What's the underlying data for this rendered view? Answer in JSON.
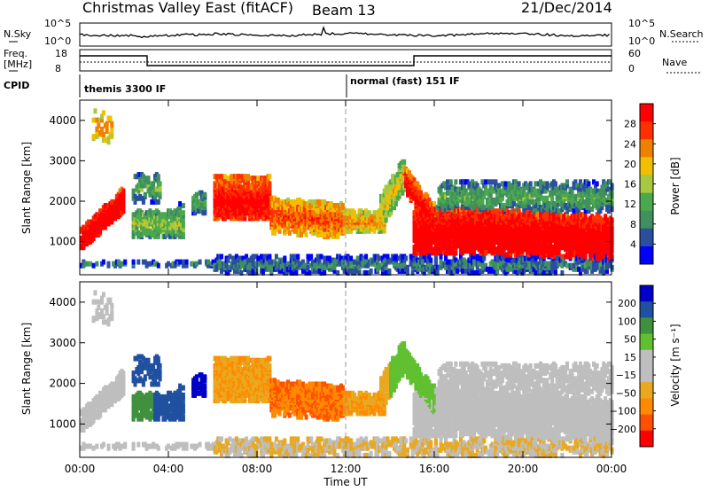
{
  "header": {
    "site": "Christmas Valley East (fitACF)",
    "beam": "Beam 13",
    "date": "21/Dec/2014"
  },
  "aux_panels": {
    "nsky_label": "N.Sky",
    "nsky_ticks": [
      "10^5",
      "10^0"
    ],
    "nsearch_label": "N.Search",
    "nsearch_ticks": [
      "10^5",
      "10^0"
    ],
    "freq_label_1": "Freq.",
    "freq_label_2": "[MHz]",
    "freq_ticks": [
      "18",
      "8"
    ],
    "nave_label": "Nave",
    "nave_ticks": [
      "60",
      "0"
    ],
    "cpid_label": "CPID",
    "cpid_modes": [
      "themis 3300 IF",
      "normal (fast) 151 IF"
    ]
  },
  "colors": {
    "power": [
      "#0000ff",
      "#2a4f9f",
      "#3f8f5f",
      "#4ca84c",
      "#a8c840",
      "#f0c000",
      "#f08000",
      "#ff3000",
      "#ff0000"
    ],
    "velocity": [
      "#ff0000",
      "#ff5000",
      "#ff8a00",
      "#e8a820",
      "#bebebe",
      "#bebebe",
      "#60c030",
      "#409040",
      "#2050a0",
      "#0000c8"
    ]
  },
  "chart_data": [
    {
      "type": "heatmap",
      "panel": "power",
      "x_ticks": [
        "00:00",
        "04:00",
        "08:00",
        "12:00",
        "16:00",
        "20:00",
        "00:00"
      ],
      "xlabel": "Time UT",
      "ylabel": "Slant Range [km]",
      "y_ticks": [
        "1000",
        "2000",
        "3000",
        "4000"
      ],
      "xlim": [
        0,
        24
      ],
      "ylim": [
        180,
        4500
      ],
      "colorbar_label": "Power [dB]",
      "colorbar_ticks": [
        "4",
        "8",
        "12",
        "16",
        "20",
        "24",
        "28"
      ],
      "colorbar_range": [
        0,
        30
      ],
      "cpid_change_time": 12
    },
    {
      "type": "heatmap",
      "panel": "velocity",
      "x_ticks": [
        "00:00",
        "04:00",
        "08:00",
        "12:00",
        "16:00",
        "20:00",
        "00:00"
      ],
      "xlabel": "Time UT",
      "ylabel": "Slant Range [km]",
      "y_ticks": [
        "1000",
        "2000",
        "3000",
        "4000"
      ],
      "xlim": [
        0,
        24
      ],
      "ylim": [
        180,
        4500
      ],
      "colorbar_label": "Velocity [m s⁻¹]",
      "colorbar_ticks": [
        "200",
        "100",
        "50",
        "15",
        "−15",
        "−50",
        "−100",
        "−200"
      ],
      "colorbar_range": [
        -250,
        250
      ],
      "cpid_change_time": 12
    }
  ]
}
